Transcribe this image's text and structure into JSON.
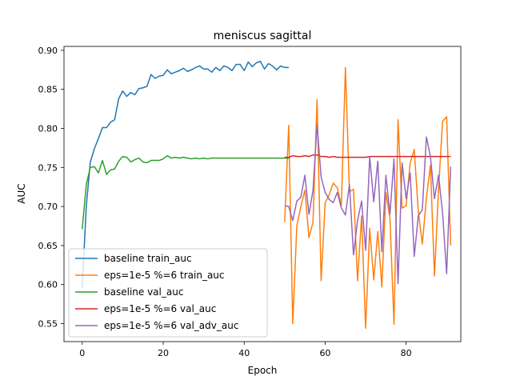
{
  "chart_data": {
    "type": "line",
    "title": "meniscus sagittal",
    "xlabel": "Epoch",
    "ylabel": "AUC",
    "xlim": [
      -4.5,
      93.5
    ],
    "ylim": [
      0.527,
      0.905
    ],
    "xticks": [
      0,
      20,
      40,
      60,
      80
    ],
    "yticks": [
      0.55,
      0.6,
      0.65,
      0.7,
      0.75,
      0.8,
      0.85,
      0.9
    ],
    "ytick_labels": [
      "0.55",
      "0.60",
      "0.65",
      "0.70",
      "0.75",
      "0.80",
      "0.85",
      "0.90"
    ],
    "grid": false,
    "legend_position": "lower-left",
    "series": [
      {
        "name": "baseline train_auc",
        "color": "#1f77b4",
        "x_start": 0,
        "values": [
          0.596,
          0.7,
          0.757,
          0.774,
          0.787,
          0.801,
          0.801,
          0.808,
          0.811,
          0.838,
          0.848,
          0.841,
          0.846,
          0.843,
          0.851,
          0.852,
          0.854,
          0.869,
          0.864,
          0.867,
          0.868,
          0.875,
          0.87,
          0.872,
          0.874,
          0.877,
          0.873,
          0.875,
          0.878,
          0.88,
          0.876,
          0.876,
          0.872,
          0.878,
          0.874,
          0.88,
          0.878,
          0.874,
          0.882,
          0.882,
          0.874,
          0.885,
          0.879,
          0.884,
          0.886,
          0.876,
          0.883,
          0.88,
          0.875,
          0.88,
          0.878,
          0.878
        ]
      },
      {
        "name": "eps=1e-5 %=6 train_auc",
        "color": "#ff7f0e",
        "x_start": 50,
        "values": [
          0.68,
          0.804,
          0.55,
          0.675,
          0.7,
          0.721,
          0.66,
          0.68,
          0.837,
          0.605,
          0.705,
          0.715,
          0.73,
          0.724,
          0.701,
          0.878,
          0.719,
          0.722,
          0.605,
          0.688,
          0.544,
          0.672,
          0.606,
          0.668,
          0.597,
          0.718,
          0.685,
          0.549,
          0.811,
          0.698,
          0.701,
          0.756,
          0.773,
          0.694,
          0.652,
          0.711,
          0.753,
          0.611,
          0.722,
          0.809,
          0.815,
          0.65
        ]
      },
      {
        "name": "baseline val_auc",
        "color": "#2ca02c",
        "x_start": 0,
        "values": [
          0.671,
          0.728,
          0.75,
          0.751,
          0.743,
          0.759,
          0.741,
          0.747,
          0.748,
          0.758,
          0.764,
          0.763,
          0.757,
          0.76,
          0.762,
          0.757,
          0.756,
          0.759,
          0.759,
          0.759,
          0.761,
          0.765,
          0.762,
          0.763,
          0.762,
          0.763,
          0.762,
          0.761,
          0.762,
          0.761,
          0.762,
          0.761,
          0.762,
          0.762,
          0.762,
          0.762,
          0.762,
          0.762,
          0.762,
          0.762,
          0.762,
          0.762,
          0.762,
          0.762,
          0.762,
          0.762,
          0.762,
          0.762,
          0.762,
          0.762,
          0.762,
          0.762
        ]
      },
      {
        "name": "eps=1e-5 %=6 val_auc",
        "color": "#d62728",
        "x_start": 50,
        "values": [
          0.763,
          0.763,
          0.765,
          0.764,
          0.764,
          0.765,
          0.764,
          0.766,
          0.766,
          0.764,
          0.764,
          0.763,
          0.764,
          0.763,
          0.763,
          0.763,
          0.763,
          0.763,
          0.763,
          0.763,
          0.763,
          0.764,
          0.764,
          0.764,
          0.764,
          0.764,
          0.764,
          0.764,
          0.764,
          0.764,
          0.764,
          0.764,
          0.764,
          0.764,
          0.764,
          0.764,
          0.764,
          0.764,
          0.764,
          0.764,
          0.764,
          0.764
        ]
      },
      {
        "name": "eps=1e-5 %=6 val_adv_auc",
        "color": "#9467bd",
        "x_start": 50,
        "values": [
          0.701,
          0.7,
          0.682,
          0.707,
          0.712,
          0.74,
          0.69,
          0.721,
          0.805,
          0.738,
          0.718,
          0.709,
          0.705,
          0.718,
          0.698,
          0.689,
          0.728,
          0.638,
          0.682,
          0.707,
          0.644,
          0.764,
          0.706,
          0.758,
          0.642,
          0.74,
          0.69,
          0.761,
          0.601,
          0.756,
          0.71,
          0.743,
          0.636,
          0.688,
          0.696,
          0.789,
          0.764,
          0.71,
          0.74,
          0.692,
          0.614,
          0.751
        ]
      }
    ]
  }
}
